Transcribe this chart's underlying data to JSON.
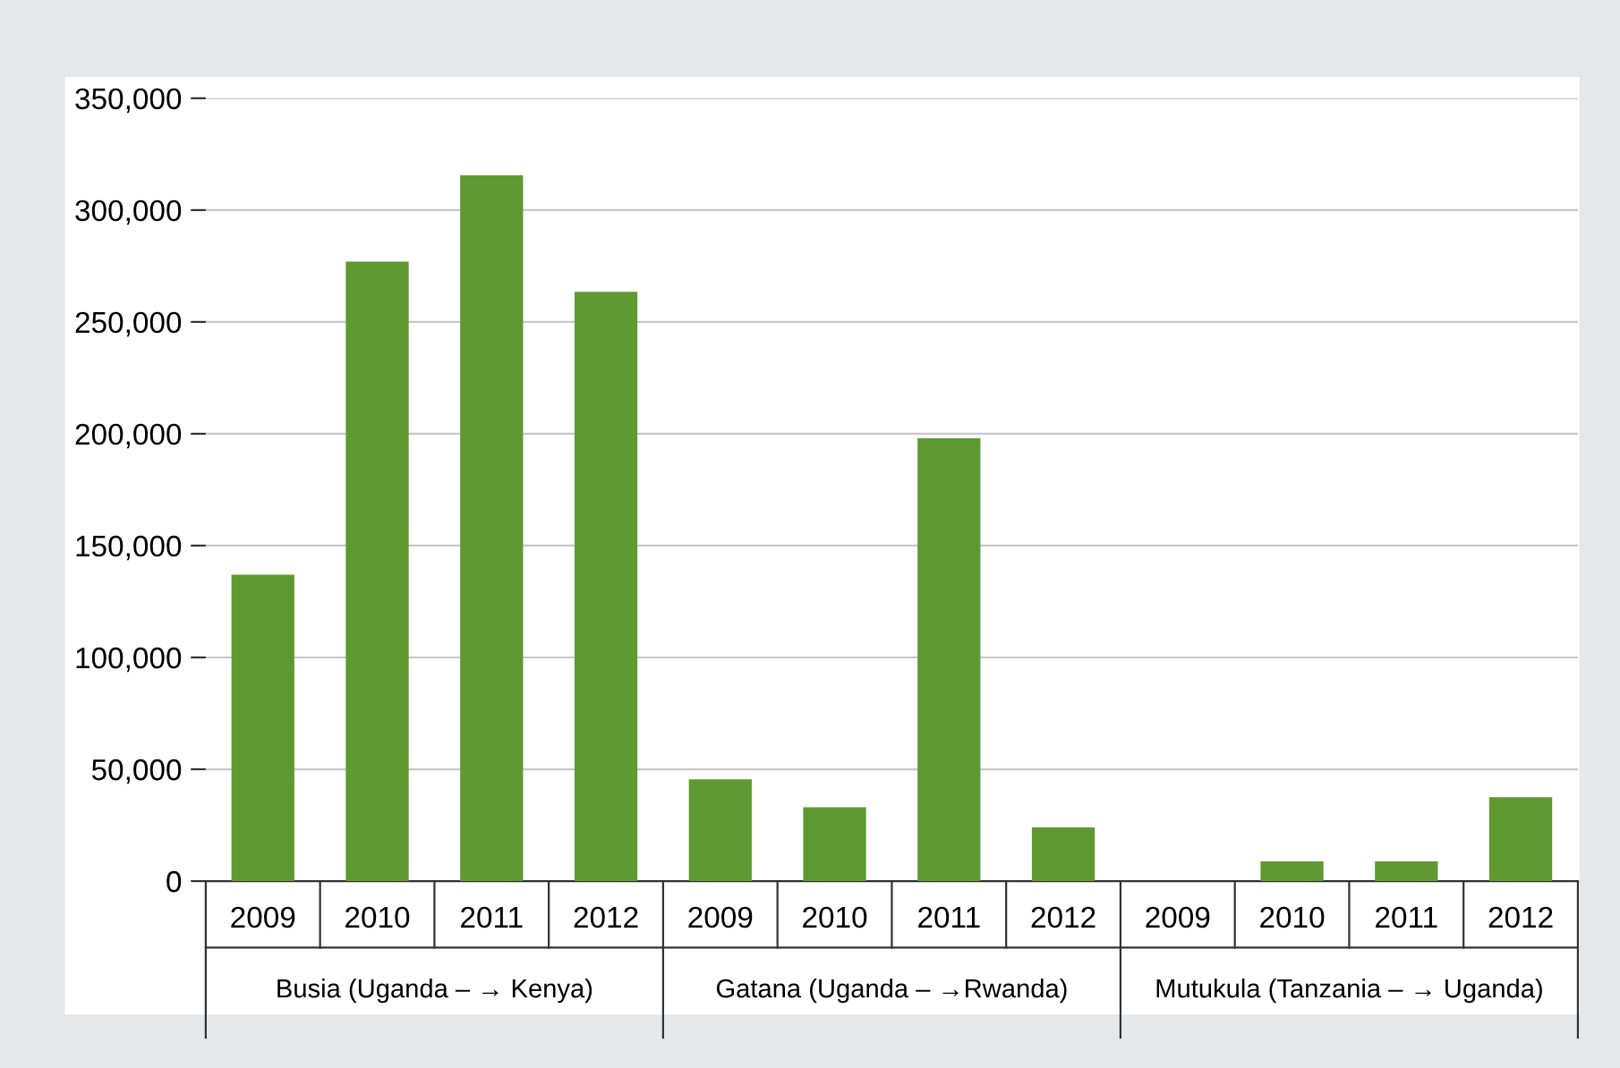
{
  "chart_data": {
    "type": "bar",
    "categories": [
      "2009",
      "2010",
      "2011",
      "2012",
      "2009",
      "2010",
      "2011",
      "2012",
      "2009",
      "2010",
      "2011",
      "2012"
    ],
    "values": [
      137000,
      277000,
      315500,
      263500,
      45500,
      33000,
      198000,
      24000,
      0,
      8800,
      8800,
      37500
    ],
    "color": "#5e9a31",
    "ylim": [
      0,
      350000
    ],
    "yticks": [
      {
        "value": 0,
        "label": "0"
      },
      {
        "value": 50000,
        "label": "50,000"
      },
      {
        "value": 100000,
        "label": "100,000"
      },
      {
        "value": 150000,
        "label": "150,000"
      },
      {
        "value": 200000,
        "label": "200,000"
      },
      {
        "value": 250000,
        "label": "250,000"
      },
      {
        "value": 300000,
        "label": "300,000"
      },
      {
        "value": 350000,
        "label": "350,000"
      }
    ],
    "grid": "y",
    "annotations": [
      "Busia (Uganda – → Kenya)",
      "Gatana (Uganda – →Rwanda)",
      "Mutukula (Tanzania – → Uganda)"
    ]
  }
}
